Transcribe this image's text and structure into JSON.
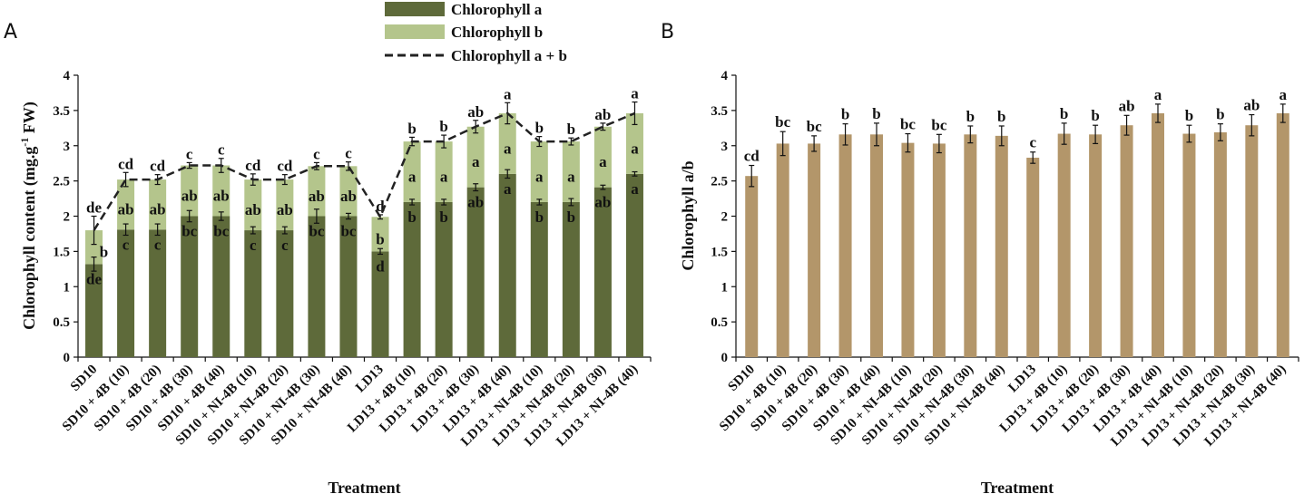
{
  "panels": {
    "a_label": "A",
    "b_label": "B"
  },
  "colors": {
    "chl_a": "#5e6a3a",
    "chl_b": "#b4c58c",
    "ratio": "#b3966a",
    "line": "#222222"
  },
  "legend": {
    "chl_a": "Chlorophyll a",
    "chl_b": "Chlorophyll b",
    "chl_ab": "Chlorophyll a + b"
  },
  "chart_data": [
    {
      "type": "bar",
      "stacked": true,
      "title": "",
      "xlabel": "Treatment",
      "ylabel": "Chlorophyll content (mg.g",
      "ylabel_sup": "-1",
      "ylabel_end": " FW)",
      "ylim": [
        0,
        4
      ],
      "yticks": [
        "0",
        "0.5",
        "1",
        "1.5",
        "2",
        "2.5",
        "3",
        "3.5",
        "4"
      ],
      "categories": [
        "SD10",
        "SD10 + 4B (10)",
        "SD10 + 4B (20)",
        "SD10 + 4B (30)",
        "SD10 + 4B (40)",
        "SD10 + NI-4B (10)",
        "SD10 + NI-4B (20)",
        "SD10 + NI-4B (30)",
        "SD10 + NI-4B (40)",
        "LD13",
        "LD13 + 4B (10)",
        "LD13 + 4B (20)",
        "LD13 + 4B (30)",
        "LD13 + 4B (40)",
        "LD13 + NI-4B (10)",
        "LD13 + NI-4B (20)",
        "LD13 + NI-4B (30)",
        "LD13 + NI-4B (40)"
      ],
      "series": [
        {
          "name": "Chlorophyll a",
          "kind": "bar",
          "values": [
            1.32,
            1.81,
            1.81,
            2.0,
            2.0,
            1.8,
            1.8,
            2.0,
            2.0,
            1.5,
            2.2,
            2.2,
            2.41,
            2.6,
            2.2,
            2.2,
            2.41,
            2.6
          ],
          "errors": [
            0.1,
            0.08,
            0.08,
            0.08,
            0.06,
            0.05,
            0.05,
            0.1,
            0.04,
            0.04,
            0.04,
            0.04,
            0.05,
            0.06,
            0.04,
            0.05,
            0.03,
            0.03
          ],
          "labels": [
            "de",
            "c",
            "c",
            "bc",
            "bc",
            "c",
            "c",
            "bc",
            "bc",
            "d",
            "b",
            "b",
            "ab",
            "a",
            "b",
            "b",
            "ab",
            "a"
          ]
        },
        {
          "name": "Chlorophyll b",
          "kind": "bar",
          "values": [
            0.48,
            0.71,
            0.71,
            0.72,
            0.72,
            0.72,
            0.72,
            0.71,
            0.71,
            0.49,
            0.86,
            0.86,
            0.86,
            0.86,
            0.86,
            0.86,
            0.86,
            0.86
          ],
          "errors": [
            0.2,
            0.1,
            0.07,
            0.04,
            0.1,
            0.08,
            0.07,
            0.05,
            0.06,
            0.03,
            0.06,
            0.09,
            0.09,
            0.15,
            0.07,
            0.05,
            0.05,
            0.16
          ],
          "labels": [
            "b",
            "ab",
            "ab",
            "ab",
            "ab",
            "ab",
            "ab",
            "ab",
            "ab",
            "b",
            "a",
            "a",
            "a",
            "a",
            "a",
            "a",
            "a",
            "a"
          ],
          "total_labels": [
            "de",
            "cd",
            "cd",
            "c",
            "c",
            "cd",
            "cd",
            "c",
            "c",
            "d",
            "b",
            "b",
            "ab",
            "a",
            "b",
            "b",
            "ab",
            "a"
          ]
        },
        {
          "name": "Chlorophyll a + b",
          "kind": "line-dashed",
          "values": [
            1.8,
            2.52,
            2.52,
            2.72,
            2.72,
            2.52,
            2.52,
            2.71,
            2.71,
            1.99,
            3.06,
            3.06,
            3.27,
            3.46,
            3.06,
            3.06,
            3.27,
            3.46
          ]
        }
      ]
    },
    {
      "type": "bar",
      "title": "",
      "xlabel": "Treatment",
      "ylabel": "Chlorophyll a/b",
      "ylim": [
        0,
        4
      ],
      "yticks": [
        "0",
        "0.5",
        "1",
        "1.5",
        "2",
        "2.5",
        "3",
        "3.5",
        "4"
      ],
      "categories": [
        "SD10",
        "SD10 + 4B (10)",
        "SD10 + 4B (20)",
        "SD10 + 4B (30)",
        "SD10 + 4B (40)",
        "SD10 + NI-4B (10)",
        "SD10 + NI-4B (20)",
        "SD10 + NI-4B (30)",
        "SD10 + NI-4B (40)",
        "LD13",
        "LD13 + 4B (10)",
        "LD13 + 4B (20)",
        "LD13 + 4B (30)",
        "LD13 + 4B (40)",
        "LD13 + NI-4B (10)",
        "LD13 + NI-4B (20)",
        "LD13 + NI-4B (30)",
        "LD13 + NI-4B (40)"
      ],
      "series": [
        {
          "name": "Chlorophyll a/b",
          "values": [
            2.57,
            3.03,
            3.03,
            3.16,
            3.16,
            3.04,
            3.03,
            3.16,
            3.14,
            2.83,
            3.17,
            3.16,
            3.29,
            3.46,
            3.17,
            3.19,
            3.29,
            3.46
          ],
          "errors": [
            0.15,
            0.17,
            0.11,
            0.15,
            0.16,
            0.13,
            0.13,
            0.12,
            0.14,
            0.08,
            0.15,
            0.13,
            0.14,
            0.13,
            0.12,
            0.12,
            0.15,
            0.13
          ],
          "labels": [
            "cd",
            "bc",
            "bc",
            "b",
            "b",
            "bc",
            "bc",
            "b",
            "b",
            "c",
            "b",
            "b",
            "ab",
            "a",
            "b",
            "b",
            "ab",
            "a"
          ]
        }
      ]
    }
  ]
}
